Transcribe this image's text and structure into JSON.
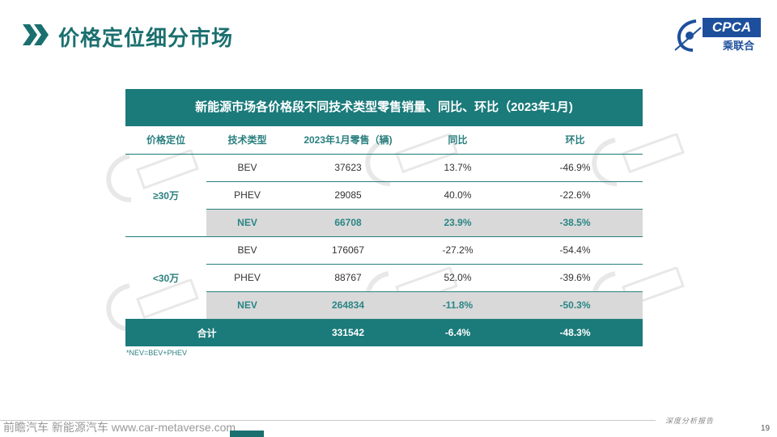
{
  "header": {
    "title": "价格定位细分市场",
    "logo_text": "CPCA",
    "logo_cn": "乘联合"
  },
  "table": {
    "title": "新能源市场各价格段不同技术类型零售销量、同比、环比（2023年1月)",
    "columns": [
      "价格定位",
      "技术类型",
      "2023年1月零售（辆)",
      "同比",
      "环比"
    ],
    "groups": [
      {
        "label": "≥30万",
        "rows": [
          {
            "tech": "BEV",
            "sales": "37623",
            "yoy": "13.7%",
            "mom": "-46.9%"
          },
          {
            "tech": "PHEV",
            "sales": "29085",
            "yoy": "40.0%",
            "mom": "-22.6%"
          },
          {
            "tech": "NEV",
            "sales": "66708",
            "yoy": "23.9%",
            "mom": "-38.5%"
          }
        ]
      },
      {
        "label": "<30万",
        "rows": [
          {
            "tech": "BEV",
            "sales": "176067",
            "yoy": "-27.2%",
            "mom": "-54.4%"
          },
          {
            "tech": "PHEV",
            "sales": "88767",
            "yoy": "52.0%",
            "mom": "-39.6%"
          },
          {
            "tech": "NEV",
            "sales": "264834",
            "yoy": "-11.8%",
            "mom": "-50.3%"
          }
        ]
      }
    ],
    "total": {
      "label": "合计",
      "sales": "331542",
      "yoy": "-6.4%",
      "mom": "-48.3%"
    }
  },
  "footnote": "*NEV=BEV+PHEV",
  "footer": {
    "report_label": "深度分析报告",
    "page_number": "19",
    "source_text": "前瞻汽车 新能源汽车 www.car-metaverse.com"
  },
  "colors": {
    "accent": "#1b7a7a",
    "title_green": "#1b6f6f",
    "nev_row_bg": "#d9d9d9",
    "logo_blue": "#1d4f9c"
  }
}
